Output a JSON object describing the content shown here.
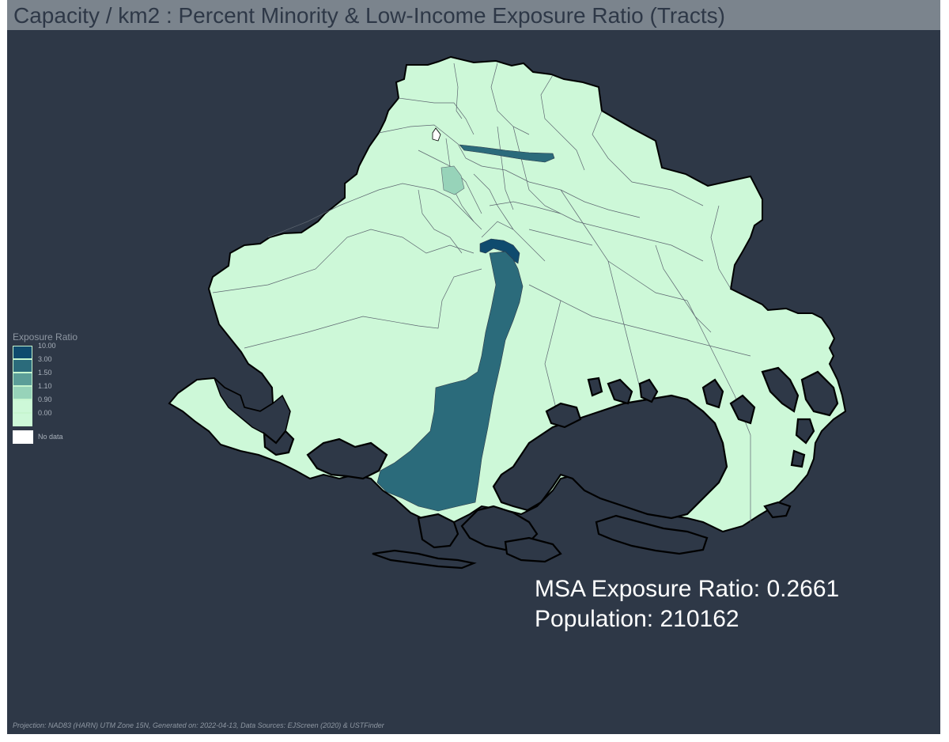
{
  "title": "Capacity / km2 : Percent Minority & Low-Income Exposure Ratio (Tracts)",
  "legend": {
    "title": "Exposure Ratio",
    "classes": [
      {
        "label": "10.00",
        "color": "#0f4b6e"
      },
      {
        "label": "3.00",
        "color": "#2b6b7b"
      },
      {
        "label": "1.50",
        "color": "#5c9e98"
      },
      {
        "label": "1.10",
        "color": "#97d3b9"
      },
      {
        "label": "0.90",
        "color": "#cdf8d8"
      },
      {
        "label": "0.00",
        "color": "#cdf8d8"
      }
    ],
    "no_data_label": "No data",
    "no_data_color": "#ffffff"
  },
  "stats": {
    "line1": "MSA Exposure Ratio: 0.2661",
    "line2": "Population: 210162"
  },
  "footer": "Projection: NAD83 (HARN) UTM Zone 15N, Generated on: 2022-04-13, Data Sources: EJScreen (2020) & USTFinder",
  "colors": {
    "background": "#2e3847",
    "title_bar": "#7b848d",
    "land": "#cdf8d8",
    "high": "#2b6b7b",
    "very_high": "#0f4b6e",
    "mid": "#97d3b9"
  }
}
